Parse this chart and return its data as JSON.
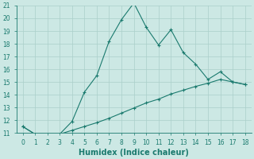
{
  "xlabel": "Humidex (Indice chaleur)",
  "x_main": [
    0,
    1,
    2,
    3,
    4,
    5,
    6,
    7,
    8,
    9,
    10,
    11,
    12,
    13,
    14,
    15,
    16,
    17,
    18
  ],
  "y_main": [
    11.5,
    10.9,
    10.75,
    10.9,
    11.9,
    14.2,
    15.5,
    18.2,
    19.9,
    21.2,
    19.3,
    17.9,
    19.1,
    17.3,
    16.4,
    15.2,
    15.8,
    15.0,
    14.8
  ],
  "x_line2": [
    0,
    1,
    2,
    3,
    4,
    5,
    6,
    7,
    8,
    9,
    10,
    11,
    12,
    13,
    14,
    15,
    16,
    17,
    18
  ],
  "y_line2": [
    11.5,
    10.9,
    10.75,
    10.9,
    11.2,
    11.5,
    11.8,
    12.15,
    12.55,
    12.95,
    13.35,
    13.65,
    14.05,
    14.35,
    14.65,
    14.9,
    15.2,
    15.0,
    14.8
  ],
  "color": "#1a7a6e",
  "background": "#cce8e4",
  "grid_color": "#aacfca",
  "ylim": [
    11,
    21
  ],
  "xlim": [
    -0.5,
    18.5
  ],
  "yticks": [
    11,
    12,
    13,
    14,
    15,
    16,
    17,
    18,
    19,
    20,
    21
  ],
  "xticks": [
    0,
    1,
    2,
    3,
    4,
    5,
    6,
    7,
    8,
    9,
    10,
    11,
    12,
    13,
    14,
    15,
    16,
    17,
    18
  ],
  "xlabel_fontsize": 7,
  "tick_fontsize": 5.5,
  "linewidth": 0.8,
  "markersize": 3.0
}
